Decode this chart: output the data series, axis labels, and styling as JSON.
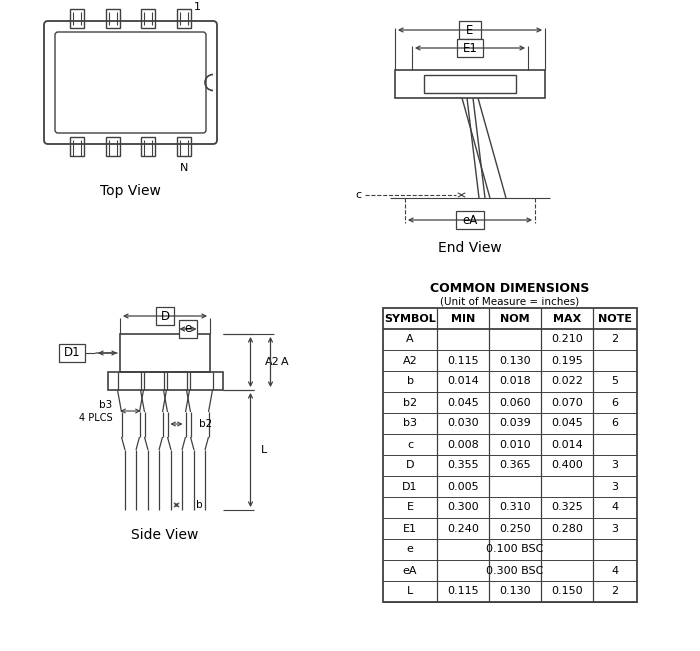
{
  "bg_color": "#ffffff",
  "line_color": "#404040",
  "table_title": "COMMON DIMENSIONS",
  "table_subtitle": "(Unit of Measure = inches)",
  "table_headers": [
    "SYMBOL",
    "MIN",
    "NOM",
    "MAX",
    "NOTE"
  ],
  "table_rows": [
    [
      "A",
      "",
      "",
      "0.210",
      "2"
    ],
    [
      "A2",
      "0.115",
      "0.130",
      "0.195",
      ""
    ],
    [
      "b",
      "0.014",
      "0.018",
      "0.022",
      "5"
    ],
    [
      "b2",
      "0.045",
      "0.060",
      "0.070",
      "6"
    ],
    [
      "b3",
      "0.030",
      "0.039",
      "0.045",
      "6"
    ],
    [
      "c",
      "0.008",
      "0.010",
      "0.014",
      ""
    ],
    [
      "D",
      "0.355",
      "0.365",
      "0.400",
      "3"
    ],
    [
      "D1",
      "0.005",
      "",
      "",
      "3"
    ],
    [
      "E",
      "0.300",
      "0.310",
      "0.325",
      "4"
    ],
    [
      "E1",
      "0.240",
      "0.250",
      "0.280",
      "3"
    ],
    [
      "e",
      "0.100 BSC",
      "",
      "",
      ""
    ],
    [
      "eA",
      "0.300 BSC",
      "",
      "",
      "4"
    ],
    [
      "L",
      "0.115",
      "0.130",
      "0.150",
      "2"
    ]
  ]
}
